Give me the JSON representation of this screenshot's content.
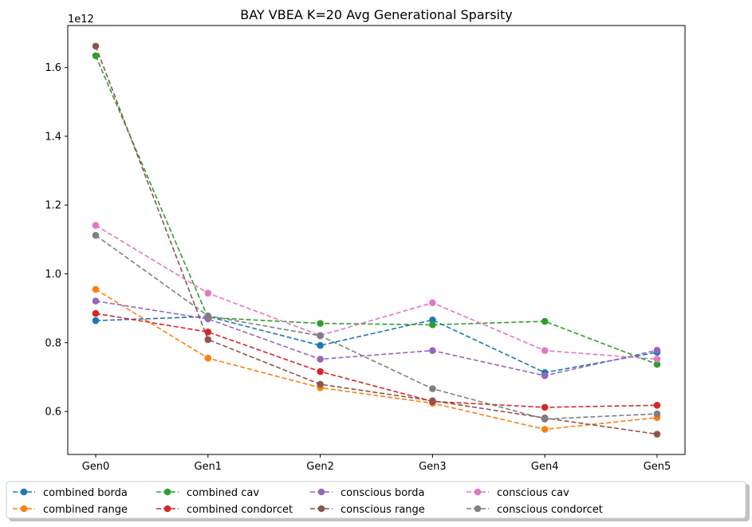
{
  "chart_data": {
    "type": "line",
    "title": "BAY VBEA K=20 Avg Generational Sparsity",
    "xlabel": "",
    "ylabel": "",
    "categories": [
      "Gen0",
      "Gen1",
      "Gen2",
      "Gen3",
      "Gen4",
      "Gen5"
    ],
    "y_scale_label": "1e12",
    "y_multiplier": 1000000000000.0,
    "ylim": [
      0.475,
      1.722
    ],
    "yticks": [
      0.6,
      0.8,
      1.0,
      1.2,
      1.4,
      1.6
    ],
    "ytick_labels": [
      "0.6",
      "0.8",
      "1.0",
      "1.2",
      "1.4",
      "1.6"
    ],
    "grid": false,
    "legend_position": "bottom-center",
    "line_style": "dashed",
    "marker": "circle",
    "series": [
      {
        "name": "combined borda",
        "color": "#1f77b4",
        "values": [
          0.864,
          0.876,
          0.792,
          0.866,
          0.713,
          0.772
        ]
      },
      {
        "name": "combined range",
        "color": "#ff7f0e",
        "values": [
          0.955,
          0.755,
          0.669,
          0.624,
          0.548,
          0.582
        ]
      },
      {
        "name": "combined cav",
        "color": "#2ca02c",
        "values": [
          1.634,
          0.873,
          0.856,
          0.852,
          0.862,
          0.737
        ]
      },
      {
        "name": "combined condorcet",
        "color": "#d62728",
        "values": [
          0.885,
          0.831,
          0.716,
          0.629,
          0.612,
          0.618
        ]
      },
      {
        "name": "conscious borda",
        "color": "#9467bd",
        "values": [
          0.921,
          0.869,
          0.752,
          0.777,
          0.704,
          0.778
        ]
      },
      {
        "name": "conscious range",
        "color": "#8c564b",
        "values": [
          1.662,
          0.809,
          0.679,
          0.631,
          0.581,
          0.534
        ]
      },
      {
        "name": "conscious cav",
        "color": "#e377c2",
        "values": [
          1.141,
          0.944,
          0.821,
          0.916,
          0.777,
          0.752
        ]
      },
      {
        "name": "conscious condorcet",
        "color": "#7f7f7f",
        "values": [
          1.112,
          0.878,
          0.82,
          0.666,
          0.578,
          0.593
        ]
      }
    ]
  }
}
